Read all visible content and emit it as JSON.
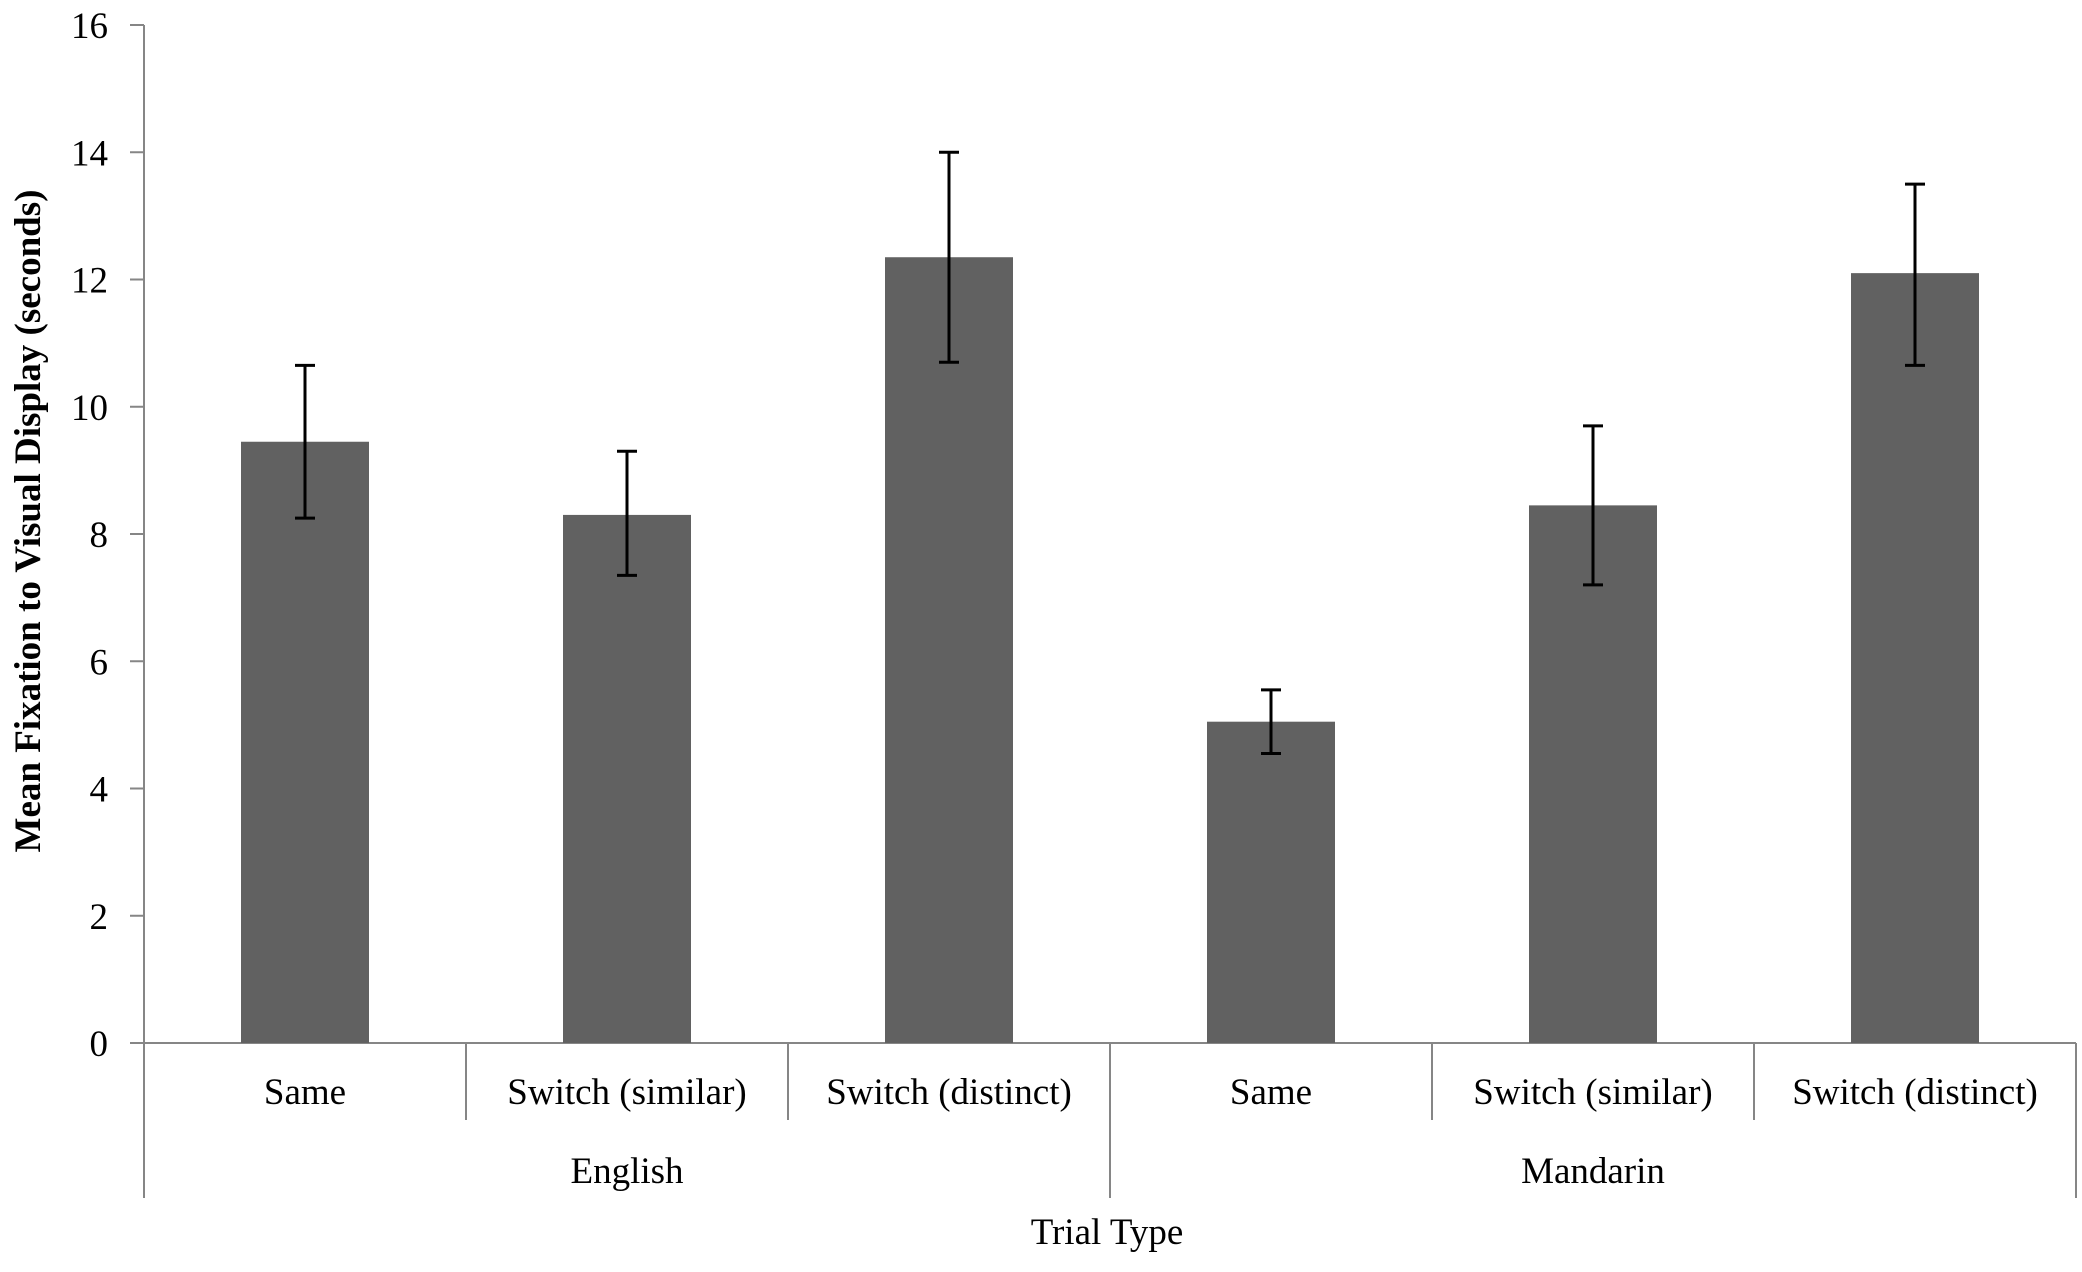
{
  "chart_data": {
    "type": "bar",
    "title": "",
    "xlabel": "Trial Type",
    "ylabel": "Mean Fixation to Visual Display (seconds)",
    "ylim": [
      0,
      16
    ],
    "yticks": [
      "0",
      "2",
      "4",
      "6",
      "8",
      "10",
      "12",
      "14",
      "16"
    ],
    "grid": false,
    "legend": "none",
    "bar_color": "#616161",
    "groups": [
      {
        "name": "English",
        "categories": [
          "Same",
          "Switch (similar)",
          "Switch (distinct)"
        ]
      },
      {
        "name": "Mandarin",
        "categories": [
          "Same",
          "Switch (similar)",
          "Switch (distinct)"
        ]
      }
    ],
    "categories": [
      "Same",
      "Switch (similar)",
      "Switch (distinct)",
      "Same",
      "Switch (similar)",
      "Switch (distinct)"
    ],
    "values": [
      9.45,
      8.3,
      12.35,
      5.05,
      8.45,
      12.1
    ],
    "error_low": [
      8.25,
      7.35,
      10.7,
      4.55,
      7.2,
      10.65
    ],
    "error_high": [
      10.65,
      9.3,
      14.0,
      5.55,
      9.7,
      13.5
    ]
  }
}
